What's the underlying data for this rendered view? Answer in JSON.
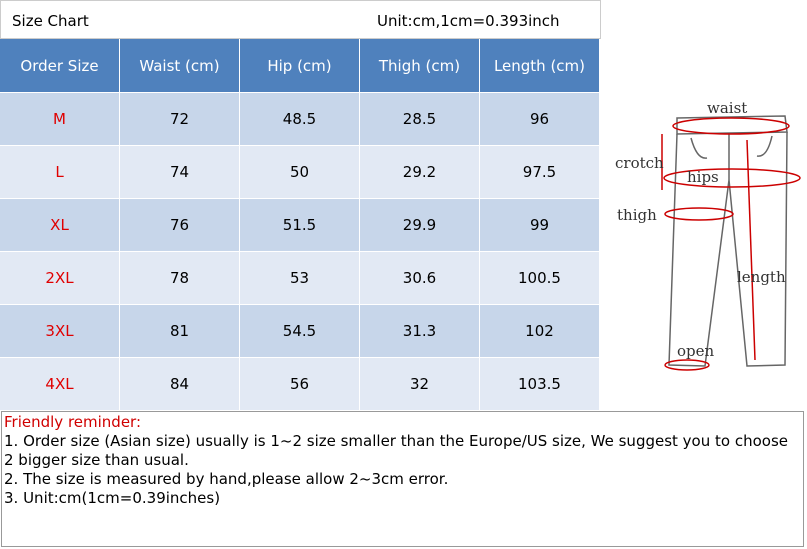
{
  "header": {
    "title": "Size Chart",
    "unit": "Unit:cm,1cm=0.393inch"
  },
  "table": {
    "columns": [
      "Order Size",
      "Waist (cm)",
      "Hip (cm)",
      "Thigh (cm)",
      "Length (cm)"
    ],
    "rows": [
      [
        "M",
        72,
        48.5,
        28.5,
        96
      ],
      [
        "L",
        74,
        50,
        29.2,
        97.5
      ],
      [
        "XL",
        76,
        51.5,
        29.9,
        99
      ],
      [
        "2XL",
        78,
        53,
        30.6,
        100.5
      ],
      [
        "3XL",
        81,
        54.5,
        31.3,
        102
      ],
      [
        "4XL",
        84,
        56,
        32,
        103.5
      ]
    ]
  },
  "diagram": {
    "labels": [
      "waist",
      "crotch",
      "hips",
      "thigh",
      "length",
      "open"
    ]
  },
  "reminder": {
    "title": "Friendly reminder:",
    "lines": [
      "1. Order size (Asian size) usually is 1~2 size smaller than the Europe/US size, We suggest you to choose 2 bigger size than usual.",
      "2. The size is measured by hand,please allow 2~3cm error.",
      "3. Unit:cm(1cm=0.39inches)"
    ]
  }
}
